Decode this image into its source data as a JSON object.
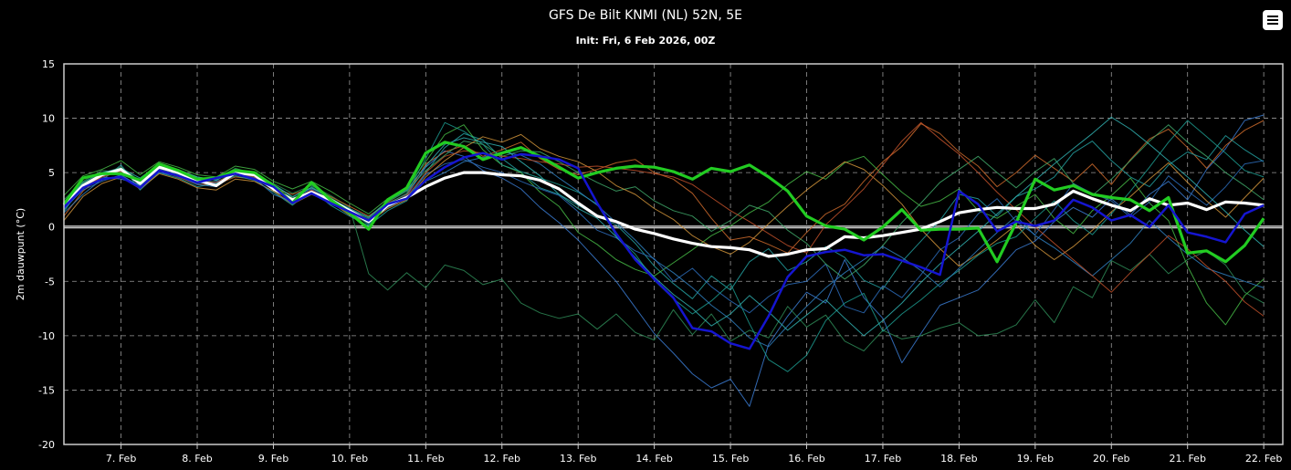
{
  "title": "GFS De Bilt KNMI (NL) 52N, 5E",
  "subtitle": "Init: Fri, 6 Feb 2026, 00Z",
  "menu_icon": "hamburger-menu-icon",
  "chart_data": {
    "type": "line",
    "title": "GFS De Bilt KNMI (NL) 52N, 5E",
    "subtitle": "Init: Fri, 6 Feb 2026, 00Z",
    "ylabel": "2m dauwpunt (°C)",
    "ylim": [
      -20,
      15
    ],
    "yticks": [
      15,
      10,
      5,
      0,
      -5,
      -10,
      -15,
      -20
    ],
    "x_start": "2026-02-06T06:00",
    "x_end": "2026-02-22T06:00",
    "x_step_hours": 6,
    "xticks": [
      "7. Feb",
      "8. Feb",
      "9. Feb",
      "10. Feb",
      "11. Feb",
      "12. Feb",
      "13. Feb",
      "14. Feb",
      "15. Feb",
      "16. Feb",
      "17. Feb",
      "18. Feb",
      "19. Feb",
      "20. Feb",
      "21. Feb",
      "22. Feb"
    ],
    "grid": true,
    "background": "#000000",
    "series": [
      {
        "color": "#ffffff",
        "highlight": true,
        "values": [
          2,
          3.8,
          4.8,
          5.3,
          4,
          5.5,
          5,
          4.3,
          3.8,
          5,
          4.8,
          3.5,
          2.5,
          3.2,
          2.5,
          1.5,
          0.5,
          2,
          2.7,
          3.7,
          4.5,
          5,
          5,
          4.8,
          4.7,
          4.3,
          3.5,
          2.2,
          1,
          0.5,
          -0.2,
          -0.6,
          -1.1,
          -1.5,
          -1.8,
          -1.9,
          -2.1,
          -2.7,
          -2.5,
          -2.1,
          -2,
          -0.9,
          -1,
          -0.8,
          -0.5,
          -0.2,
          0.5,
          1.3,
          1.6,
          1.8,
          1.7,
          1.7,
          2.1,
          3.3,
          2.6,
          2,
          1.5,
          2.6,
          2,
          2.2,
          1.6,
          2.3,
          2.2,
          2
        ]
      },
      {
        "color": "#22cc22",
        "highlight": true,
        "values": [
          2.1,
          4.5,
          4.9,
          4.9,
          4.3,
          5.8,
          5.2,
          4.4,
          4.5,
          5.2,
          5,
          3.8,
          2.2,
          4.1,
          2.5,
          1.3,
          -0.2,
          2.5,
          3.6,
          6.8,
          7.8,
          7.4,
          6.2,
          6.8,
          7.3,
          6.5,
          5.5,
          4.5,
          5,
          5.4,
          5.6,
          5.5,
          5.1,
          4.4,
          5.4,
          5.1,
          5.7,
          4.6,
          3.3,
          1,
          0.1,
          -0.2,
          -1.2,
          0,
          1.6,
          -0.3,
          -0.2,
          -0.2,
          -0.1,
          -3.2,
          0.4,
          4.4,
          3.4,
          3.8,
          3,
          2.7,
          2.5,
          1.5,
          2.7,
          -2.4,
          -2.2,
          -3.2,
          -1.7,
          0.8
        ]
      },
      {
        "color": "#1515d0",
        "highlight": true,
        "values": [
          1.8,
          3.6,
          4.4,
          4.6,
          3.6,
          5.2,
          4.7,
          4.1,
          4.5,
          4.9,
          4.4,
          3.7,
          2.2,
          3.1,
          2.2,
          1.4,
          0.6,
          2.1,
          2.6,
          4.3,
          5.5,
          6.4,
          6.8,
          6.2,
          6.7,
          6.5,
          6.2,
          5.4,
          2.2,
          -0.6,
          -3,
          -4.8,
          -6.5,
          -9.3,
          -9.6,
          -10.7,
          -11.2,
          -8.2,
          -4.6,
          -2.7,
          -2.3,
          -2.1,
          -2.6,
          -2.5,
          -3.1,
          -3.7,
          -4.4,
          3.3,
          2.1,
          -0.4,
          0.5,
          0.1,
          0.6,
          2.5,
          1.8,
          0.6,
          1.1,
          0,
          2,
          -0.5,
          -0.9,
          -1.4,
          1.2,
          2
        ]
      },
      {
        "color": "#3a7ad0",
        "values": [
          1.6,
          3.5,
          4.6,
          4.4,
          3.9,
          5.3,
          4.8,
          4.2,
          4.0,
          5.0,
          4.6,
          3.6,
          2.3,
          3.3,
          2.5,
          1.2,
          0.4,
          2.0,
          2.9,
          5.5,
          7.0,
          6.5,
          5.2,
          4.5,
          3.5,
          1.8,
          0.4,
          -1.2,
          -3.1,
          -5.0,
          -7.4,
          -9.8,
          -11.6,
          -13.5,
          -14.8,
          -14.0,
          -16.5,
          -10.8,
          -8.2,
          -6.0,
          -7.0,
          -3.0,
          -6.5,
          -8.4,
          -12.5,
          -9.8,
          -7.2,
          -6.5,
          -5.8,
          -4.0,
          -2.1,
          -1.3,
          0.5,
          1.8,
          0.9,
          2.6,
          1.1,
          3.0,
          4.2,
          2.5,
          5.3,
          7.2,
          9.8,
          10.3
        ]
      },
      {
        "color": "#2e8b57",
        "values": [
          2.5,
          4.2,
          5.2,
          5.0,
          4.4,
          5.6,
          5.1,
          4.5,
          4.4,
          5.4,
          4.9,
          4.0,
          3.1,
          3.8,
          2.9,
          1.8,
          -4.3,
          -5.8,
          -4.2,
          -5.6,
          -3.5,
          -4.0,
          -5.3,
          -4.8,
          -7.0,
          -7.9,
          -8.4,
          -8.0,
          -9.4,
          -8.0,
          -9.7,
          -10.4,
          -7.6,
          -9.9,
          -8.0,
          -10.5,
          -9.5,
          -10.2,
          -7.3,
          -9.2,
          -8.1,
          -10.5,
          -11.4,
          -9.5,
          -10.3,
          -10.0,
          -9.3,
          -8.8,
          -10.0,
          -9.8,
          -9.0,
          -6.7,
          -8.8,
          -5.5,
          -6.5,
          -3.1,
          -4.0,
          -2.5,
          -4.3,
          -3.0,
          -2.2,
          -3.5,
          -6.0,
          -7.0
        ]
      },
      {
        "color": "#cc6a2b",
        "values": [
          1.0,
          3.3,
          4.7,
          5.2,
          4.1,
          5.2,
          4.6,
          3.9,
          3.9,
          4.6,
          4.4,
          3.5,
          3.0,
          3.6,
          2.8,
          1.9,
          1.0,
          2.2,
          3.0,
          5.8,
          6.9,
          7.5,
          6.5,
          7.1,
          7.8,
          6.3,
          5.3,
          4.8,
          5.3,
          5.9,
          6.2,
          5.0,
          4.4,
          3.1,
          0.8,
          -1.2,
          -0.9,
          -1.6,
          -2.4,
          -0.5,
          1.2,
          2.1,
          4.2,
          6.0,
          7.4,
          9.5,
          8.6,
          6.9,
          5.6,
          3.7,
          5.0,
          6.6,
          5.4,
          4.2,
          5.8,
          3.9,
          6.2,
          8.1,
          9.0,
          7.3,
          5.4,
          7.5,
          8.9,
          9.8
        ]
      },
      {
        "color": "#23a0a0",
        "values": [
          1.4,
          3.9,
          4.3,
          5.7,
          3.4,
          5.0,
          4.5,
          3.7,
          4.0,
          4.7,
          4.3,
          3.2,
          2.0,
          3.4,
          2.0,
          1.0,
          0.1,
          1.5,
          2.4,
          5.0,
          7.3,
          8.6,
          8.0,
          6.3,
          5.0,
          3.6,
          3.0,
          2.0,
          1.0,
          0.2,
          -1.5,
          -3.6,
          -5.2,
          -6.6,
          -4.5,
          -5.8,
          -3.2,
          -2.0,
          -4.0,
          -3.2,
          -1.8,
          -2.8,
          -4.9,
          -5.7,
          -3.2,
          -1.3,
          0.6,
          3.0,
          2.6,
          1.0,
          2.8,
          3.5,
          4.6,
          6.8,
          7.9,
          6.1,
          4.6,
          3.7,
          5.7,
          6.9,
          6.2,
          8.4,
          7.1,
          6.0
        ]
      },
      {
        "color": "#45b845",
        "values": [
          2.9,
          4.7,
          5.3,
          6.1,
          4.8,
          6.0,
          5.5,
          4.8,
          4.6,
          5.6,
          5.3,
          4.2,
          3.5,
          4.2,
          3.3,
          2.2,
          1.2,
          2.6,
          3.6,
          6.0,
          8.5,
          9.4,
          7.1,
          5.7,
          5.0,
          3.2,
          1.9,
          -0.5,
          -1.6,
          -3.0,
          -3.9,
          -4.5,
          -3.3,
          -2.1,
          -0.8,
          0.1,
          1.3,
          2.3,
          3.9,
          5.1,
          4.4,
          5.9,
          6.5,
          4.8,
          3.2,
          1.9,
          2.4,
          3.5,
          1.5,
          0.8,
          1.9,
          3.0,
          0.8,
          -0.6,
          1.5,
          2.9,
          4.5,
          2.2,
          0.6,
          -3.6,
          -7.0,
          -9.0,
          -6.3,
          -4.8
        ]
      },
      {
        "color": "#2b6bb8",
        "values": [
          1.7,
          3.4,
          4.2,
          4.8,
          3.7,
          5.4,
          5.0,
          4.0,
          4.2,
          4.8,
          4.5,
          3.4,
          2.6,
          3.5,
          2.4,
          1.3,
          0.3,
          1.8,
          2.7,
          4.8,
          5.8,
          6.2,
          5.5,
          5.0,
          4.2,
          3.5,
          2.9,
          1.4,
          -0.3,
          -1.0,
          -2.2,
          -2.9,
          -5.0,
          -3.8,
          -5.5,
          -6.8,
          -7.9,
          -6.4,
          -5.3,
          -5.0,
          -3.4,
          -7.3,
          -7.9,
          -5.4,
          -6.5,
          -4.4,
          -2.1,
          -1.0,
          1.2,
          2.6,
          0.5,
          -0.7,
          1.6,
          4.0,
          3.1,
          2.4,
          0.9,
          2.3,
          4.7,
          3.3,
          2.0,
          3.7,
          5.8,
          6.1
        ]
      },
      {
        "color": "#3fa86a",
        "values": [
          2.3,
          4.0,
          4.9,
          5.5,
          4.2,
          5.7,
          5.3,
          4.6,
          4.3,
          5.3,
          5.0,
          3.9,
          2.7,
          3.9,
          2.7,
          1.6,
          0.8,
          2.3,
          3.3,
          5.2,
          6.6,
          7.9,
          7.6,
          6.5,
          7.0,
          6.9,
          6.0,
          5.0,
          4.1,
          3.3,
          3.7,
          2.4,
          1.5,
          1.0,
          -0.4,
          0.6,
          2.0,
          1.4,
          -0.3,
          -1.5,
          -3.4,
          -4.8,
          -3.5,
          -1.7,
          0.4,
          2.2,
          4.1,
          5.3,
          6.5,
          5.0,
          3.6,
          5.1,
          6.3,
          4.0,
          2.9,
          4.4,
          6.1,
          7.9,
          9.4,
          7.8,
          6.5,
          5.0,
          3.8,
          2.5
        ]
      },
      {
        "color": "#d0933a",
        "values": [
          0.6,
          2.8,
          4.0,
          4.6,
          3.5,
          4.9,
          4.4,
          3.6,
          3.4,
          4.4,
          4.2,
          3.3,
          2.1,
          3.0,
          2.3,
          1.1,
          0.4,
          1.7,
          2.5,
          4.6,
          6.1,
          7.3,
          8.3,
          7.8,
          8.5,
          7.2,
          6.5,
          6.0,
          5.1,
          3.8,
          3.0,
          1.7,
          0.7,
          -0.8,
          -1.8,
          -2.5,
          -1.4,
          0.3,
          1.9,
          3.4,
          4.7,
          6.0,
          5.3,
          3.8,
          2.1,
          -0.2,
          -2.0,
          -3.6,
          -2.5,
          -1.2,
          0.2,
          -1.7,
          -3.0,
          -1.8,
          -0.3,
          1.4,
          2.8,
          4.4,
          5.9,
          4.1,
          2.4,
          0.9,
          2.7,
          4.5
        ]
      },
      {
        "color": "#1c9a8e",
        "values": [
          2.0,
          3.6,
          4.7,
          5.0,
          4.0,
          5.5,
          4.9,
          4.4,
          4.1,
          5.1,
          4.7,
          3.7,
          2.4,
          3.7,
          2.6,
          1.5,
          0.2,
          2.1,
          3.1,
          6.3,
          9.6,
          8.8,
          7.6,
          5.7,
          5.1,
          4.5,
          3.9,
          3.2,
          2.1,
          -0.8,
          -2.5,
          -4.9,
          -6.6,
          -8.0,
          -6.8,
          -5.2,
          -8.9,
          -12.2,
          -13.3,
          -11.8,
          -8.6,
          -7.0,
          -6.1,
          -9.6,
          -8.0,
          -6.7,
          -5.2,
          -4.0,
          -2.6,
          -1.5,
          -0.9,
          0.8,
          2.4,
          0.6,
          -0.7,
          1.2,
          3.3,
          5.5,
          7.8,
          9.8,
          8.3,
          6.8,
          5.2,
          4.6
        ]
      },
      {
        "color": "#2f7fbf",
        "values": [
          1.3,
          3.0,
          4.4,
          4.7,
          3.8,
          5.0,
          4.7,
          3.9,
          3.7,
          4.9,
          4.5,
          3.0,
          2.3,
          3.2,
          2.1,
          1.4,
          0.7,
          1.9,
          2.8,
          4.2,
          5.0,
          6.0,
          6.4,
          6.9,
          6.6,
          5.8,
          4.5,
          3.3,
          2.0,
          0.4,
          -1.2,
          -3.0,
          -4.2,
          -5.6,
          -7.2,
          -8.5,
          -10.2,
          -11.0,
          -9.1,
          -7.3,
          -5.6,
          -4.2,
          -3.0,
          -1.8,
          -2.8,
          -4.0,
          -5.5,
          -3.8,
          -2.1,
          -0.5,
          1.0,
          -0.8,
          -1.9,
          -3.2,
          -4.5,
          -3.0,
          -1.5,
          0.6,
          -1.0,
          -2.5,
          -3.8,
          -4.4,
          -5.0,
          -5.6
        ]
      },
      {
        "color": "#c0502a",
        "values": [
          1.9,
          3.7,
          4.6,
          5.1,
          4.1,
          5.4,
          5.0,
          4.2,
          4.1,
          5.0,
          4.6,
          3.6,
          2.4,
          3.4,
          2.4,
          1.3,
          0.5,
          2.0,
          2.8,
          5.0,
          6.5,
          7.0,
          6.8,
          6.5,
          6.3,
          6.0,
          5.8,
          5.5,
          5.6,
          5.4,
          5.2,
          4.9,
          4.6,
          3.9,
          2.7,
          1.5,
          0.5,
          -0.6,
          -1.7,
          -2.4,
          0.2,
          1.8,
          3.5,
          5.7,
          7.9,
          9.6,
          8.1,
          6.7,
          5.0,
          3.2,
          1.6,
          0.0,
          -1.5,
          -3.0,
          -4.5,
          -6.0,
          -4.2,
          -2.5,
          -0.8,
          -2.0,
          -3.6,
          -5.0,
          -6.9,
          -8.2
        ]
      },
      {
        "color": "#30b0b0",
        "values": [
          2.2,
          4.1,
          5.0,
          5.4,
          4.5,
          5.8,
          5.2,
          4.6,
          4.3,
          5.2,
          4.9,
          3.9,
          2.8,
          3.6,
          2.6,
          1.7,
          0.9,
          2.4,
          3.4,
          5.6,
          7.6,
          8.2,
          7.8,
          7.4,
          6.0,
          4.7,
          3.0,
          1.7,
          0.8,
          -0.9,
          -2.8,
          -4.6,
          -6.2,
          -7.5,
          -9.1,
          -8.0,
          -6.3,
          -7.8,
          -9.5,
          -8.1,
          -6.7,
          -8.4,
          -10.0,
          -8.6,
          -7.0,
          -5.1,
          -3.4,
          -1.9,
          -0.4,
          1.2,
          2.8,
          4.3,
          5.8,
          7.2,
          8.6,
          10.1,
          9.0,
          7.6,
          6.1,
          4.6,
          3.0,
          1.4,
          -0.3,
          -1.8
        ]
      }
    ]
  }
}
